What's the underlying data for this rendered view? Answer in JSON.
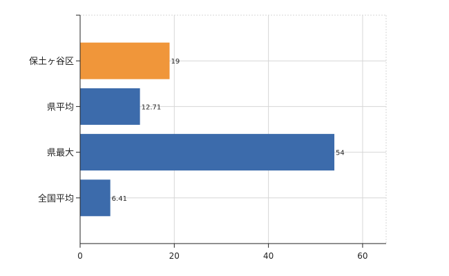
{
  "chart_data": {
    "type": "bar",
    "orientation": "horizontal",
    "categories": [
      "保土ヶ谷区",
      "県平均",
      "県最大",
      "全国平均"
    ],
    "values": [
      19,
      12.71,
      54,
      6.41
    ],
    "value_labels": [
      "19",
      "12.71",
      "54",
      "6.41"
    ],
    "colors": [
      "#f0963a",
      "#3c6bab",
      "#3c6bab",
      "#3c6bab"
    ],
    "xlim": [
      0,
      65
    ],
    "xticks": [
      0,
      20,
      40,
      60
    ],
    "xtick_labels": [
      "0",
      "20",
      "40",
      "60"
    ],
    "grid": true,
    "grid_color": "#d6d6d6",
    "axis_color": "#222222",
    "title": "",
    "xlabel": "",
    "ylabel": ""
  }
}
